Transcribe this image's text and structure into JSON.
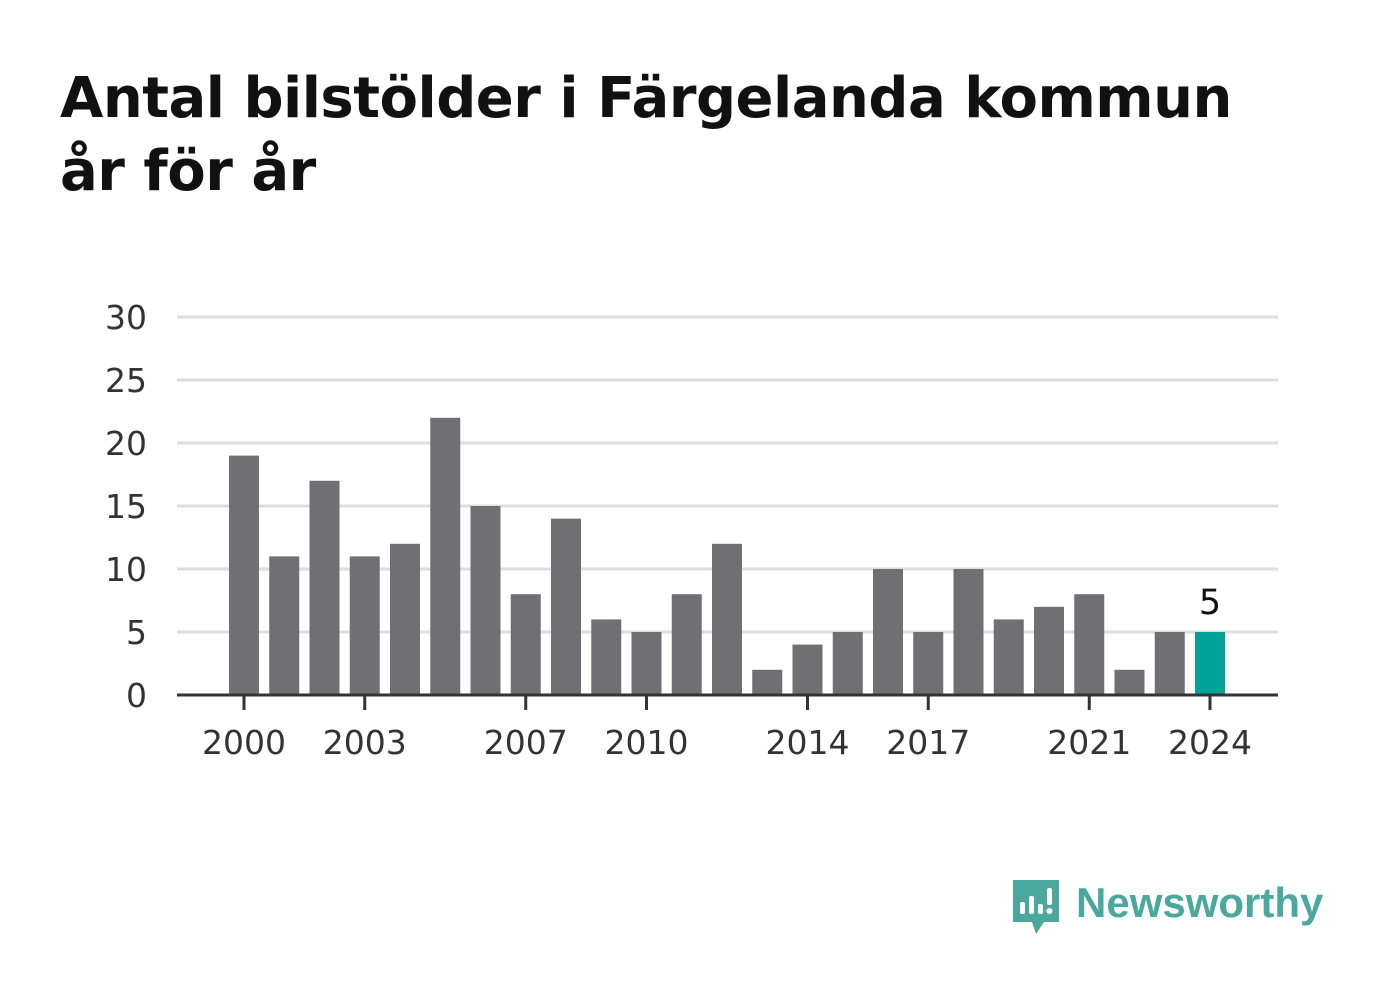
{
  "title_lines": [
    "Antal bilstölder i Färgelanda kommun",
    "år för år"
  ],
  "logo": {
    "text": "Newsworthy",
    "icon": "bar-chart-speech-bubble-icon",
    "color": "#4aa89e"
  },
  "colors": {
    "bar": "#706f74",
    "highlight": "#00a39a",
    "grid": "#dddddd",
    "axis": "#333333"
  },
  "chart_data": {
    "type": "bar",
    "title": "Antal bilstölder i Färgelanda kommun år för år",
    "xlabel": "",
    "ylabel": "",
    "categories": [
      2000,
      2001,
      2002,
      2003,
      2004,
      2005,
      2006,
      2007,
      2008,
      2009,
      2010,
      2011,
      2012,
      2013,
      2014,
      2015,
      2016,
      2017,
      2018,
      2019,
      2020,
      2021,
      2022,
      2023,
      2024
    ],
    "values": [
      19,
      11,
      17,
      11,
      12,
      22,
      15,
      8,
      14,
      6,
      5,
      8,
      12,
      2,
      4,
      5,
      10,
      5,
      10,
      6,
      7,
      8,
      2,
      5,
      5
    ],
    "highlight_index": 24,
    "highlight_label": "5",
    "x_tick_labels": [
      "2000",
      "2003",
      "2007",
      "2010",
      "2014",
      "2017",
      "2021",
      "2024"
    ],
    "y_ticks": [
      0,
      5,
      10,
      15,
      20,
      25,
      30
    ],
    "ylim": [
      0,
      30
    ],
    "grid": true,
    "legend": "none"
  }
}
